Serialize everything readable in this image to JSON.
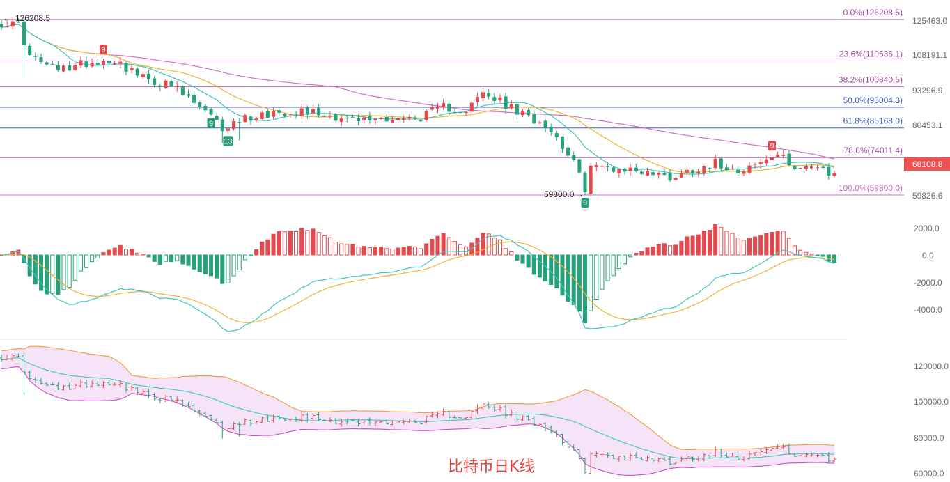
{
  "caption": "比特币日K线",
  "colors": {
    "up": "#e5494d",
    "down": "#26a17b",
    "fib": "#a04aa0",
    "fib_blue": "#3d5bb8",
    "ma_short": "#3cc6c0",
    "ma_mid": "#f2b233",
    "ma_long": "#d56fc8",
    "price_badge": "#f05252",
    "bb_fill": "#f1d9f6",
    "bb_upper": "#f29a3c",
    "bb_lower": "#c94bc8",
    "bb_mid": "#3cc6c0"
  },
  "price_panel": {
    "high_marker": "126208.5",
    "low_marker": "59800.0",
    "current_price": "68108.8",
    "td_labels": [
      {
        "text": "9",
        "type": "sell",
        "index": 18
      },
      {
        "text": "9",
        "type": "buy",
        "index": 37
      },
      {
        "text": "13",
        "type": "buy",
        "index": 40
      },
      {
        "text": "9",
        "type": "sell",
        "index": 136
      },
      {
        "text": "9",
        "type": "buy",
        "index": 103
      }
    ],
    "y_ticks": [
      "125463.0",
      "108191.1",
      "93296.9",
      "80453.1",
      "68108.8",
      "59826.6"
    ],
    "fib_levels": [
      {
        "label": "0.0%(126208.5)",
        "value": 126208.5
      },
      {
        "label": "23.6%(110536.1)",
        "value": 110536.1
      },
      {
        "label": "38.2%(100840.5)",
        "value": 100840.5
      },
      {
        "label": "50.0%(93004.3)",
        "value": 93004.3
      },
      {
        "label": "61.8%(85168.0)",
        "value": 85168.0
      },
      {
        "label": "78.6%(74011.4)",
        "value": 74011.4
      },
      {
        "label": "100.0%(59800.0)",
        "value": 59800.0
      }
    ]
  },
  "macd_panel": {
    "y_ticks": [
      "2000.0",
      "0.0",
      "-2000.0",
      "-4000.0"
    ]
  },
  "boll_panel": {
    "y_ticks": [
      "120000.0",
      "100000.0",
      "80000.0",
      "60000.0"
    ]
  },
  "chart_data": {
    "type": "candlestick",
    "title": "比特币日K线",
    "candles_count": 148,
    "close_anchors": [
      [
        0,
        125000
      ],
      [
        3,
        124000
      ],
      [
        5,
        112000
      ],
      [
        10,
        107000
      ],
      [
        15,
        110000
      ],
      [
        20,
        111000
      ],
      [
        25,
        104000
      ],
      [
        30,
        101000
      ],
      [
        35,
        93000
      ],
      [
        39,
        85000
      ],
      [
        43,
        89000
      ],
      [
        48,
        91000
      ],
      [
        53,
        92000
      ],
      [
        58,
        90000
      ],
      [
        63,
        88000
      ],
      [
        68,
        89000
      ],
      [
        73,
        88500
      ],
      [
        78,
        93000
      ],
      [
        82,
        92000
      ],
      [
        85,
        98000
      ],
      [
        88,
        95000
      ],
      [
        92,
        90000
      ],
      [
        96,
        87000
      ],
      [
        100,
        76000
      ],
      [
        103,
        62500
      ],
      [
        104,
        70500
      ],
      [
        108,
        70000
      ],
      [
        113,
        69000
      ],
      [
        118,
        66500
      ],
      [
        122,
        69500
      ],
      [
        126,
        72000
      ],
      [
        130,
        69500
      ],
      [
        134,
        72000
      ],
      [
        137,
        75000
      ],
      [
        139,
        71500
      ],
      [
        143,
        70500
      ],
      [
        146,
        67500
      ],
      [
        147,
        68108.8
      ]
    ],
    "ylim": [
      59000,
      127500
    ],
    "fib_high": 126208.5,
    "fib_low": 59800.0
  }
}
